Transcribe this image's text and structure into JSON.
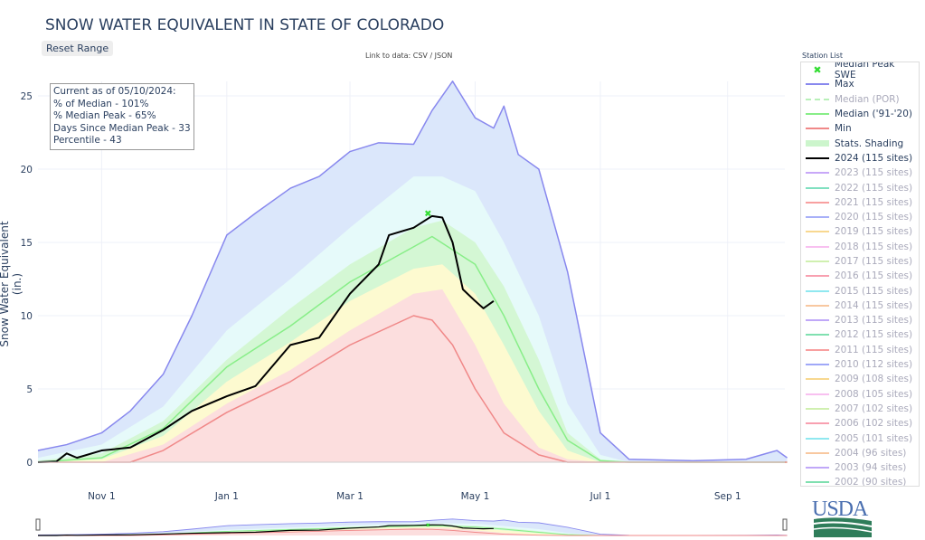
{
  "header": {
    "title": "SNOW WATER EQUIVALENT IN STATE OF COLORADO",
    "reset_label": "Reset Range",
    "data_link": "Link to data: CSV / JSON"
  },
  "info_box": {
    "lines": [
      "Current as of 05/10/2024:",
      "% of Median - 101%",
      "% Median Peak - 65%",
      "Days Since Median Peak - 33",
      "Percentile - 43"
    ]
  },
  "legend": {
    "title": "Station List",
    "items": [
      {
        "label": "Median Peak SWE",
        "color": "#33dd33",
        "type": "marker",
        "active": true
      },
      {
        "label": "Max",
        "color": "#8888ee",
        "type": "line",
        "active": true
      },
      {
        "label": "Median (POR)",
        "color": "#b8f0b8",
        "type": "dash",
        "active": false
      },
      {
        "label": "Median ('91-'20)",
        "color": "#88ee88",
        "type": "line",
        "active": true
      },
      {
        "label": "Min",
        "color": "#f08888",
        "type": "line",
        "active": true
      },
      {
        "label": "Stats. Shading",
        "color": "#ccf5cc",
        "type": "band",
        "active": true
      },
      {
        "label": "2024 (115 sites)",
        "color": "#000000",
        "type": "line",
        "active": true
      },
      {
        "label": "2023 (115 sites)",
        "color": "#c8a8f8",
        "type": "line",
        "active": false
      },
      {
        "label": "2022 (115 sites)",
        "color": "#80e0c0",
        "type": "line",
        "active": false
      },
      {
        "label": "2021 (115 sites)",
        "color": "#f8a0a0",
        "type": "line",
        "active": false
      },
      {
        "label": "2020 (115 sites)",
        "color": "#a8b0f8",
        "type": "line",
        "active": false
      },
      {
        "label": "2019 (115 sites)",
        "color": "#f8d890",
        "type": "line",
        "active": false
      },
      {
        "label": "2018 (115 sites)",
        "color": "#f8c0f0",
        "type": "line",
        "active": false
      },
      {
        "label": "2017 (115 sites)",
        "color": "#d0f0b0",
        "type": "line",
        "active": false
      },
      {
        "label": "2016 (115 sites)",
        "color": "#f8a0b0",
        "type": "line",
        "active": false
      },
      {
        "label": "2015 (115 sites)",
        "color": "#90e8f0",
        "type": "line",
        "active": false
      },
      {
        "label": "2014 (115 sites)",
        "color": "#f8c8a0",
        "type": "line",
        "active": false
      },
      {
        "label": "2013 (115 sites)",
        "color": "#c0a8f8",
        "type": "line",
        "active": false
      },
      {
        "label": "2012 (115 sites)",
        "color": "#80e0b0",
        "type": "line",
        "active": false
      },
      {
        "label": "2011 (115 sites)",
        "color": "#f8a0a0",
        "type": "line",
        "active": false
      },
      {
        "label": "2010 (112 sites)",
        "color": "#a0a8f8",
        "type": "line",
        "active": false
      },
      {
        "label": "2009 (108 sites)",
        "color": "#f8d890",
        "type": "line",
        "active": false
      },
      {
        "label": "2008 (105 sites)",
        "color": "#f8c0f0",
        "type": "line",
        "active": false
      },
      {
        "label": "2007 (102 sites)",
        "color": "#d0f0b0",
        "type": "line",
        "active": false
      },
      {
        "label": "2006 (102 sites)",
        "color": "#f8a0b0",
        "type": "line",
        "active": false
      },
      {
        "label": "2005 (101 sites)",
        "color": "#90e8f0",
        "type": "line",
        "active": false
      },
      {
        "label": "2004 (96 sites)",
        "color": "#f8c8a0",
        "type": "line",
        "active": false
      },
      {
        "label": "2003 (94 sites)",
        "color": "#c0a8f8",
        "type": "line",
        "active": false
      },
      {
        "label": "2002 (90 sites)",
        "color": "#80e0b0",
        "type": "line",
        "active": false
      }
    ]
  },
  "logo": {
    "text": "USDA"
  },
  "chart_data": {
    "type": "area",
    "title": "SNOW WATER EQUIVALENT IN STATE OF COLORADO",
    "ylabel": "Snow Water Equivalent (in.)",
    "xlabel": "",
    "x_ticks": [
      "Nov 1",
      "Jan 1",
      "Mar 1",
      "May 1",
      "Jul 1",
      "Sep 1"
    ],
    "y_ticks": [
      0,
      5,
      10,
      15,
      20,
      25
    ],
    "ylim": [
      0,
      26.5
    ],
    "xlim": [
      "10-01",
      "09-30"
    ],
    "grid": true,
    "legend_position": "right",
    "series": [
      {
        "name": "Max",
        "color": "#8888ee",
        "x": [
          "10-01",
          "10-15",
          "11-01",
          "11-15",
          "12-01",
          "12-15",
          "01-01",
          "01-15",
          "02-01",
          "02-15",
          "03-01",
          "03-15",
          "04-01",
          "04-10",
          "04-20",
          "05-01",
          "05-10",
          "05-15",
          "05-22",
          "06-01",
          "06-15",
          "07-01",
          "07-15",
          "08-15",
          "09-10",
          "09-20",
          "09-25",
          "09-30"
        ],
        "y": [
          0.8,
          1.2,
          2,
          3.5,
          6,
          10,
          15.5,
          17,
          18.7,
          19.5,
          21.2,
          21.8,
          21.7,
          24,
          26,
          23.5,
          22.8,
          24.3,
          21,
          20,
          13,
          2,
          0.2,
          0.1,
          0.2,
          0.6,
          0.8,
          0.3
        ]
      },
      {
        "name": "Stats. Shading p90",
        "color": "#e6fafa",
        "x": [
          "10-01",
          "11-01",
          "12-01",
          "01-01",
          "02-01",
          "03-01",
          "04-01",
          "04-15",
          "05-01",
          "05-15",
          "06-01",
          "06-15",
          "07-01",
          "07-15"
        ],
        "y": [
          0.3,
          1.2,
          3.8,
          9,
          12.5,
          16,
          19.5,
          19.5,
          18.5,
          15,
          10,
          4,
          0.5,
          0
        ]
      },
      {
        "name": "Stats. Shading p70",
        "color": "#d4f7d4",
        "x": [
          "10-01",
          "11-01",
          "12-01",
          "01-01",
          "02-01",
          "03-01",
          "04-01",
          "04-15",
          "05-01",
          "05-15",
          "06-01",
          "06-15",
          "07-01",
          "07-15"
        ],
        "y": [
          0.1,
          0.6,
          2.8,
          7,
          10.5,
          13.5,
          16,
          16.5,
          15,
          12,
          7,
          2,
          0.2,
          0
        ]
      },
      {
        "name": "Stats. Shading p30",
        "color": "#fdfad0",
        "x": [
          "10-01",
          "11-01",
          "12-01",
          "01-01",
          "02-01",
          "03-01",
          "04-01",
          "04-15",
          "05-01",
          "05-15",
          "06-01",
          "06-15",
          "07-01",
          "07-15"
        ],
        "y": [
          0,
          0.2,
          1.8,
          5.5,
          8.2,
          11,
          13.2,
          13.5,
          11.5,
          8,
          3.5,
          0.8,
          0,
          0
        ]
      },
      {
        "name": "Stats. Shading p10",
        "color": "#fcdede",
        "x": [
          "10-01",
          "11-01",
          "12-01",
          "01-01",
          "02-01",
          "03-01",
          "04-01",
          "04-15",
          "05-01",
          "05-15",
          "06-01",
          "06-15",
          "07-01",
          "07-15"
        ],
        "y": [
          0,
          0,
          1.2,
          4,
          6.3,
          9,
          11.5,
          11.8,
          8,
          4,
          1,
          0.2,
          0,
          0
        ]
      },
      {
        "name": "Median ('91-'20)",
        "color": "#88ee88",
        "x": [
          "10-01",
          "11-01",
          "12-01",
          "01-01",
          "02-01",
          "03-01",
          "04-01",
          "04-10",
          "05-01",
          "05-15",
          "06-01",
          "06-15",
          "07-01",
          "07-15",
          "09-30"
        ],
        "y": [
          0,
          0.3,
          2.3,
          6.5,
          9.3,
          12.3,
          14.7,
          15.4,
          13.5,
          10,
          5,
          1.5,
          0.1,
          0,
          0
        ]
      },
      {
        "name": "Min",
        "color": "#f08888",
        "x": [
          "10-01",
          "11-15",
          "12-01",
          "01-01",
          "02-01",
          "03-01",
          "04-01",
          "04-10",
          "04-20",
          "05-01",
          "05-15",
          "06-01",
          "06-15",
          "09-30"
        ],
        "y": [
          0,
          0,
          0.8,
          3.4,
          5.5,
          8,
          10,
          9.7,
          8,
          5,
          2,
          0.5,
          0,
          0
        ]
      },
      {
        "name": "2024 (115 sites)",
        "color": "#000000",
        "x": [
          "10-01",
          "10-10",
          "10-15",
          "10-20",
          "11-01",
          "11-15",
          "12-01",
          "12-15",
          "01-01",
          "01-15",
          "02-01",
          "02-15",
          "03-01",
          "03-15",
          "03-20",
          "04-01",
          "04-10",
          "04-15",
          "04-20",
          "04-25",
          "05-01",
          "05-05",
          "05-10"
        ],
        "y": [
          0,
          0.05,
          0.6,
          0.3,
          0.8,
          1,
          2.2,
          3.5,
          4.5,
          5.2,
          8,
          8.5,
          11.5,
          13.5,
          15.5,
          16,
          16.8,
          16.7,
          15,
          11.8,
          11,
          10.5,
          11
        ]
      }
    ],
    "median_peak": {
      "x": "04-08",
      "y": 17
    }
  }
}
